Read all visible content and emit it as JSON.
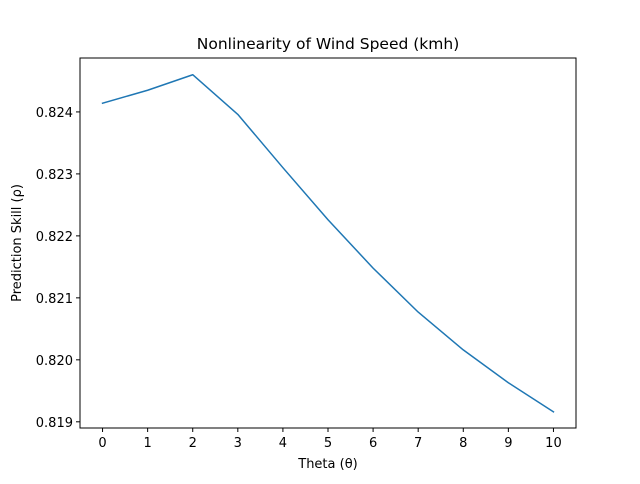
{
  "chart_data": {
    "type": "line",
    "title": "Nonlinearity of Wind Speed (kmh)",
    "xlabel": "Theta (θ)",
    "ylabel": "Prediction Skill (ρ)",
    "xlim": [
      -0.5,
      10.5
    ],
    "ylim": [
      0.8189,
      0.82487
    ],
    "x_ticks": [
      0,
      1,
      2,
      3,
      4,
      5,
      6,
      7,
      8,
      9,
      10
    ],
    "y_ticks": [
      0.819,
      0.82,
      0.821,
      0.822,
      0.823,
      0.824
    ],
    "y_tick_labels": [
      "0.819",
      "0.820",
      "0.821",
      "0.822",
      "0.823",
      "0.824"
    ],
    "grid": false,
    "legend": "none",
    "series": [
      {
        "color": "#1f77b4",
        "x": [
          0,
          1,
          2,
          3,
          4,
          5,
          6,
          7,
          8,
          9,
          10
        ],
        "y": [
          0.82414,
          0.82435,
          0.8246,
          0.82396,
          0.8231,
          0.82226,
          0.82148,
          0.82077,
          0.82016,
          0.81963,
          0.81916
        ]
      }
    ]
  }
}
